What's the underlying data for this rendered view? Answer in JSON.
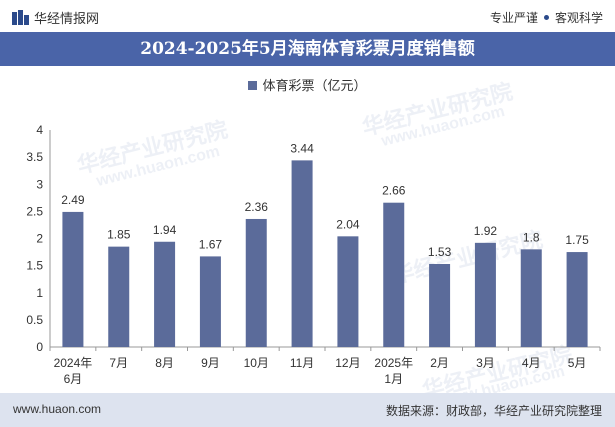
{
  "header": {
    "logo_text": "华经情报网",
    "right_text_1": "专业严谨",
    "right_text_2": "客观科学"
  },
  "title": "2024-2025年5月海南体育彩票月度销售额",
  "colors": {
    "title_bg": "#4a64a8",
    "bar": "#5b6b9a",
    "footer_bg": "#dde3ef"
  },
  "chart_data": {
    "type": "bar",
    "categories": [
      "2024年\n6月",
      "7月",
      "8月",
      "9月",
      "10月",
      "11月",
      "12月",
      "2025年\n1月",
      "2月",
      "3月",
      "4月",
      "5月"
    ],
    "series": [
      {
        "name": "体育彩票（亿元）",
        "values": [
          2.49,
          1.85,
          1.94,
          1.67,
          2.36,
          3.44,
          2.04,
          2.66,
          1.53,
          1.92,
          1.8,
          1.75
        ]
      }
    ],
    "yticks": [
      "0",
      "0.5",
      "1",
      "1.5",
      "2",
      "2.5",
      "3",
      "3.5",
      "4"
    ],
    "ylim": [
      0,
      4
    ],
    "legend_position": "top"
  },
  "footer": {
    "website": "www.huaon.com",
    "source": "数据来源：财政部，华经产业研究院整理"
  },
  "watermarks": [
    "华经产业研究院",
    "www.huaon.com"
  ]
}
